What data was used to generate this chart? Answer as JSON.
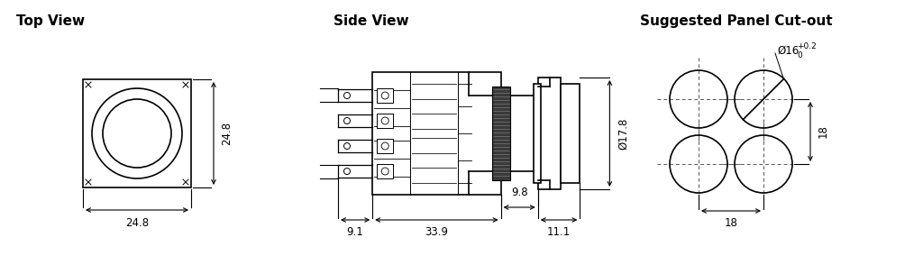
{
  "bg_color": "#ffffff",
  "line_color": "#000000",
  "title_fontsize": 11,
  "dim_fontsize": 8.5,
  "titles": [
    "Top View",
    "Side View",
    "Suggested Panel Cut-out"
  ],
  "lw_main": 1.2,
  "lw_dim": 0.8,
  "lw_detail": 0.7
}
